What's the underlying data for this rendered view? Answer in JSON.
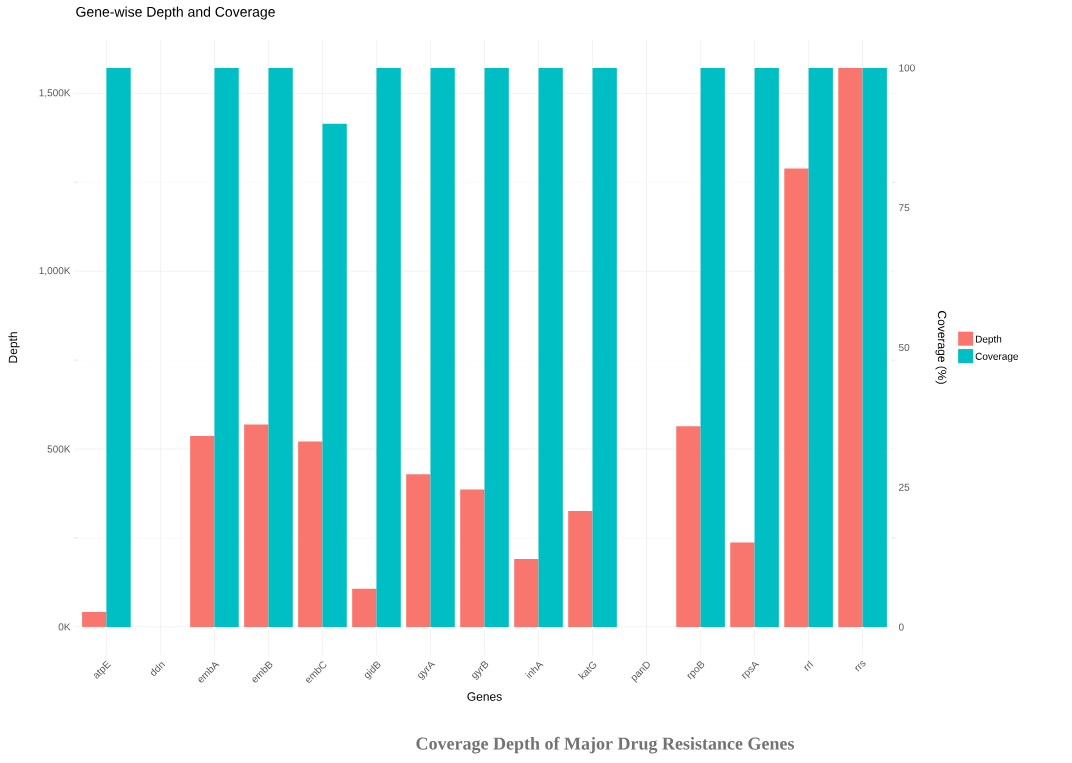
{
  "chart_data": {
    "type": "bar",
    "title": "Gene-wise Depth and Coverage",
    "xlabel": "Genes",
    "ylabel": "Depth",
    "y2label": "Coverage (%)",
    "annotations": [
      "Coverage Depth of Major Drug Resistance Genes"
    ],
    "categories": [
      "atpE",
      "ddn",
      "embA",
      "embB",
      "embC",
      "gidB",
      "gyrA",
      "gyrB",
      "inhA",
      "katG",
      "panD",
      "rpoB",
      "rpsA",
      "rrl",
      "rrs"
    ],
    "series": [
      {
        "name": "Depth",
        "color": "#f8766d",
        "values": [
          42000,
          0,
          537000,
          569000,
          521000,
          107000,
          429000,
          386000,
          191000,
          326000,
          0,
          564000,
          237000,
          1289000,
          1571000
        ]
      },
      {
        "name": "Coverage",
        "color": "#00bfc4",
        "axis": "y2",
        "values": [
          100,
          0,
          100,
          100,
          90,
          100,
          100,
          100,
          100,
          100,
          0,
          100,
          100,
          100,
          100
        ]
      }
    ],
    "ylim": [
      -79000,
      1650000
    ],
    "yticks": [
      {
        "value": 0,
        "label": "0K"
      },
      {
        "value": 500000,
        "label": "500K"
      },
      {
        "value": 1000000,
        "label": "1,000K"
      },
      {
        "value": 1500000,
        "label": "1,500K"
      }
    ],
    "y2lim": [
      -5,
      105
    ],
    "y2ticks": [
      0,
      25,
      50,
      75,
      100
    ],
    "grid": true,
    "legend": "right"
  }
}
